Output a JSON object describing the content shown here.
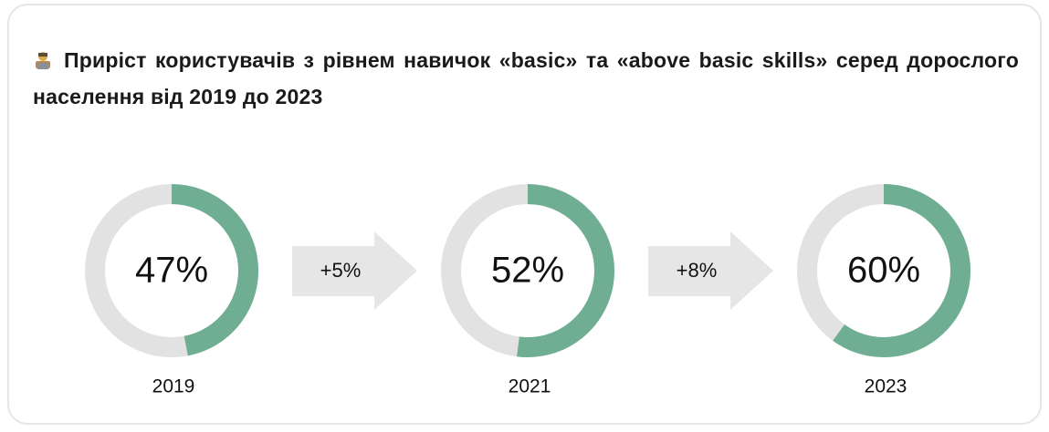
{
  "chart_data": {
    "type": "donut",
    "title": "Приріст користувачів з рівнем навичок «basic» та «above basic skills» серед дорослого населення від 2019 до 2023",
    "categories": [
      "2019",
      "2021",
      "2023"
    ],
    "values": [
      47,
      52,
      60
    ],
    "value_labels": [
      "47%",
      "52%",
      "60%"
    ],
    "annotations": [
      "+5%",
      "+8%"
    ],
    "color": "#6fae92",
    "track_color": "#e2e2e2"
  }
}
